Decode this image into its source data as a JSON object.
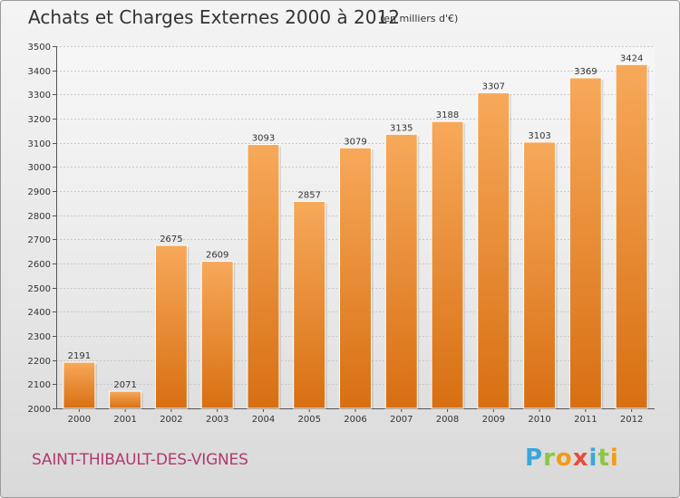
{
  "header": {
    "title": "Achats et Charges Externes 2000 à 2012",
    "subtitle": "(en milliers d'€)"
  },
  "footer": {
    "commune": "SAINT-THIBAULT-DES-VIGNES",
    "logo_letters": [
      "P",
      "r",
      "o",
      "x",
      "i",
      "t",
      "i"
    ]
  },
  "colors": {
    "bar_light": "#f7a95a",
    "bar_dark": "#d86f12",
    "grid": "#c8c8c8",
    "commune": "#b03a6e",
    "logo": [
      "#3aa7d8",
      "#8cc63f",
      "#f39c12",
      "#e74c3c",
      "#3aa7d8",
      "#8cc63f",
      "#f39c12"
    ]
  },
  "chart_data": {
    "type": "bar",
    "title": "Achats et Charges Externes 2000 à 2012",
    "subtitle": "(en milliers d'€)",
    "categories": [
      "2000",
      "2001",
      "2002",
      "2003",
      "2004",
      "2005",
      "2006",
      "2007",
      "2008",
      "2009",
      "2010",
      "2011",
      "2012"
    ],
    "values": [
      2191,
      2071,
      2675,
      2609,
      3093,
      2857,
      3079,
      3135,
      3188,
      3307,
      3103,
      3369,
      3424
    ],
    "ylim": [
      2000,
      3500
    ],
    "yticks": [
      2000,
      2100,
      2200,
      2300,
      2400,
      2500,
      2600,
      2700,
      2800,
      2900,
      3000,
      3100,
      3200,
      3300,
      3400,
      3500
    ],
    "grid": true,
    "xlabel": "",
    "ylabel": ""
  }
}
